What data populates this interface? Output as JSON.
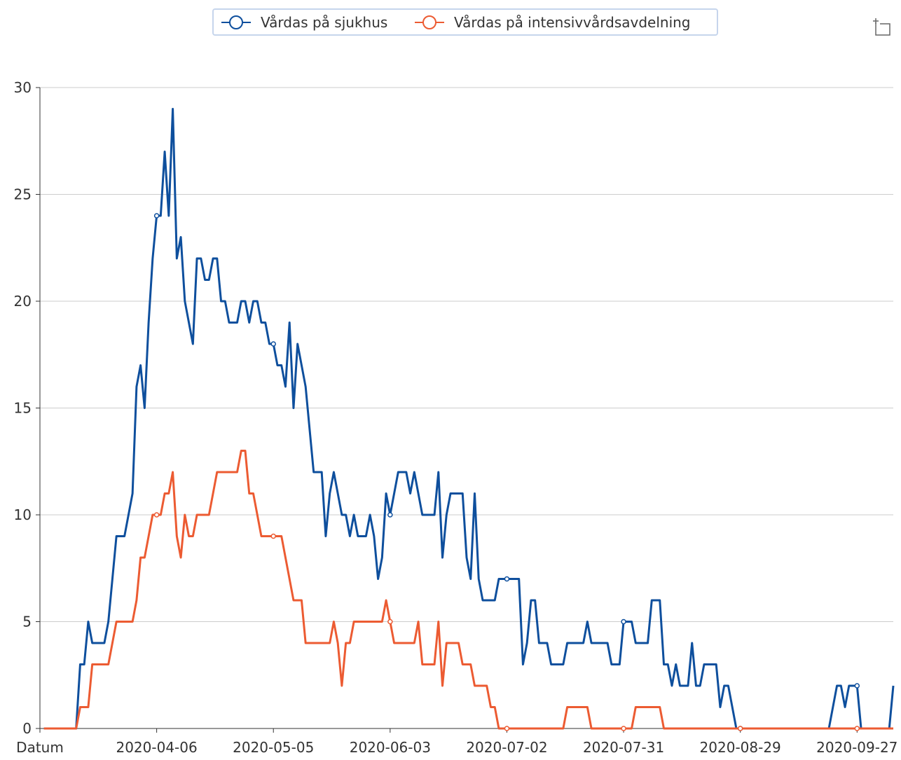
{
  "chart_data": {
    "type": "line",
    "categories": [
      "Datum",
      "2020-03-09",
      "2020-03-10",
      "2020-03-11",
      "2020-03-12",
      "2020-03-13",
      "2020-03-14",
      "2020-03-15",
      "2020-03-16",
      "2020-03-17",
      "2020-03-18",
      "2020-03-19",
      "2020-03-20",
      "2020-03-21",
      "2020-03-22",
      "2020-03-23",
      "2020-03-24",
      "2020-03-25",
      "2020-03-26",
      "2020-03-27",
      "2020-03-28",
      "2020-03-29",
      "2020-03-30",
      "2020-03-31",
      "2020-04-01",
      "2020-04-02",
      "2020-04-03",
      "2020-04-04",
      "2020-04-05",
      "2020-04-06",
      "2020-04-07",
      "2020-04-08",
      "2020-04-09",
      "2020-04-10",
      "2020-04-11",
      "2020-04-12",
      "2020-04-13",
      "2020-04-14",
      "2020-04-15",
      "2020-04-16",
      "2020-04-17",
      "2020-04-18",
      "2020-04-19",
      "2020-04-20",
      "2020-04-21",
      "2020-04-22",
      "2020-04-23",
      "2020-04-24",
      "2020-04-25",
      "2020-04-26",
      "2020-04-27",
      "2020-04-28",
      "2020-04-29",
      "2020-04-30",
      "2020-05-01",
      "2020-05-02",
      "2020-05-03",
      "2020-05-04",
      "2020-05-05",
      "2020-05-06",
      "2020-05-07",
      "2020-05-08",
      "2020-05-09",
      "2020-05-10",
      "2020-05-11",
      "2020-05-12",
      "2020-05-13",
      "2020-05-14",
      "2020-05-15",
      "2020-05-16",
      "2020-05-17",
      "2020-05-18",
      "2020-05-19",
      "2020-05-20",
      "2020-05-21",
      "2020-05-22",
      "2020-05-23",
      "2020-05-24",
      "2020-05-25",
      "2020-05-26",
      "2020-05-27",
      "2020-05-28",
      "2020-05-29",
      "2020-05-30",
      "2020-05-31",
      "2020-06-01",
      "2020-06-02",
      "2020-06-03",
      "2020-06-04",
      "2020-06-05",
      "2020-06-06",
      "2020-06-07",
      "2020-06-08",
      "2020-06-09",
      "2020-06-10",
      "2020-06-11",
      "2020-06-12",
      "2020-06-13",
      "2020-06-14",
      "2020-06-15",
      "2020-06-16",
      "2020-06-17",
      "2020-06-18",
      "2020-06-19",
      "2020-06-20",
      "2020-06-21",
      "2020-06-22",
      "2020-06-23",
      "2020-06-24",
      "2020-06-25",
      "2020-06-26",
      "2020-06-27",
      "2020-06-28",
      "2020-06-29",
      "2020-06-30",
      "2020-07-01",
      "2020-07-02",
      "2020-07-03",
      "2020-07-04",
      "2020-07-05",
      "2020-07-06",
      "2020-07-07",
      "2020-07-08",
      "2020-07-09",
      "2020-07-10",
      "2020-07-11",
      "2020-07-12",
      "2020-07-13",
      "2020-07-14",
      "2020-07-15",
      "2020-07-16",
      "2020-07-17",
      "2020-07-18",
      "2020-07-19",
      "2020-07-20",
      "2020-07-21",
      "2020-07-22",
      "2020-07-23",
      "2020-07-24",
      "2020-07-25",
      "2020-07-26",
      "2020-07-27",
      "2020-07-28",
      "2020-07-29",
      "2020-07-30",
      "2020-07-31",
      "2020-08-01",
      "2020-08-02",
      "2020-08-03",
      "2020-08-04",
      "2020-08-05",
      "2020-08-06",
      "2020-08-07",
      "2020-08-08",
      "2020-08-09",
      "2020-08-10",
      "2020-08-11",
      "2020-08-12",
      "2020-08-13",
      "2020-08-14",
      "2020-08-15",
      "2020-08-16",
      "2020-08-17",
      "2020-08-18",
      "2020-08-19",
      "2020-08-20",
      "2020-08-21",
      "2020-08-22",
      "2020-08-23",
      "2020-08-24",
      "2020-08-25",
      "2020-08-26",
      "2020-08-27",
      "2020-08-28",
      "2020-08-29",
      "2020-08-30",
      "2020-08-31",
      "2020-09-01",
      "2020-09-02",
      "2020-09-03",
      "2020-09-04",
      "2020-09-05",
      "2020-09-06",
      "2020-09-07",
      "2020-09-08",
      "2020-09-09",
      "2020-09-10",
      "2020-09-11",
      "2020-09-12",
      "2020-09-13",
      "2020-09-14",
      "2020-09-15",
      "2020-09-16",
      "2020-09-17",
      "2020-09-18",
      "2020-09-19",
      "2020-09-20",
      "2020-09-21",
      "2020-09-22",
      "2020-09-23",
      "2020-09-24",
      "2020-09-25",
      "2020-09-26",
      "2020-09-27",
      "2020-09-28",
      "2020-09-29",
      "2020-09-30",
      "2020-10-01",
      "2020-10-02",
      "2020-10-03",
      "2020-10-04",
      "2020-10-05",
      "2020-10-06"
    ],
    "series": [
      {
        "name": "Vårdas på sjukhus",
        "color": "#0e4f9d",
        "values": [
          null,
          0,
          0,
          0,
          0,
          0,
          0,
          0,
          0,
          0,
          3,
          3,
          5,
          4,
          4,
          4,
          4,
          5,
          7,
          9,
          9,
          9,
          10,
          11,
          16,
          17,
          15,
          19,
          22,
          24,
          24,
          27,
          24,
          29,
          22,
          23,
          20,
          19,
          18,
          22,
          22,
          21,
          21,
          22,
          22,
          20,
          20,
          19,
          19,
          19,
          20,
          20,
          19,
          20,
          20,
          19,
          19,
          18,
          18,
          17,
          17,
          16,
          19,
          15,
          18,
          17,
          16,
          14,
          12,
          12,
          12,
          9,
          11,
          12,
          11,
          10,
          10,
          9,
          10,
          9,
          9,
          9,
          10,
          9,
          7,
          8,
          11,
          10,
          11,
          12,
          12,
          12,
          11,
          12,
          11,
          10,
          10,
          10,
          10,
          12,
          8,
          10,
          11,
          11,
          11,
          11,
          8,
          7,
          11,
          7,
          6,
          6,
          6,
          6,
          7,
          7,
          7,
          7,
          7,
          7,
          3,
          4,
          6,
          6,
          4,
          4,
          4,
          3,
          3,
          3,
          3,
          4,
          4,
          4,
          4,
          4,
          5,
          4,
          4,
          4,
          4,
          4,
          3,
          3,
          3,
          5,
          5,
          5,
          4,
          4,
          4,
          4,
          6,
          6,
          6,
          3,
          3,
          2,
          3,
          2,
          2,
          2,
          4,
          2,
          2,
          3,
          3,
          3,
          3,
          1,
          2,
          2,
          1,
          0,
          0,
          0,
          0,
          0,
          0,
          0,
          0,
          0,
          0,
          0,
          0,
          0,
          0,
          0,
          0,
          0,
          0,
          0,
          0,
          0,
          0,
          0,
          0,
          1,
          2,
          2,
          1,
          2,
          2,
          2,
          0,
          0,
          0,
          0,
          0,
          0,
          0,
          0,
          2
        ]
      },
      {
        "name": "Vårdas på intensivvårdsavdelning",
        "color": "#ec5b32",
        "values": [
          null,
          0,
          0,
          0,
          0,
          0,
          0,
          0,
          0,
          0,
          1,
          1,
          1,
          3,
          3,
          3,
          3,
          3,
          4,
          5,
          5,
          5,
          5,
          5,
          6,
          8,
          8,
          9,
          10,
          10,
          10,
          11,
          11,
          12,
          9,
          8,
          10,
          9,
          9,
          10,
          10,
          10,
          10,
          11,
          12,
          12,
          12,
          12,
          12,
          12,
          13,
          13,
          11,
          11,
          10,
          9,
          9,
          9,
          9,
          9,
          9,
          8,
          7,
          6,
          6,
          6,
          4,
          4,
          4,
          4,
          4,
          4,
          4,
          5,
          4,
          2,
          4,
          4,
          5,
          5,
          5,
          5,
          5,
          5,
          5,
          5,
          6,
          5,
          4,
          4,
          4,
          4,
          4,
          4,
          5,
          3,
          3,
          3,
          3,
          5,
          2,
          4,
          4,
          4,
          4,
          3,
          3,
          3,
          2,
          2,
          2,
          2,
          1,
          1,
          0,
          0,
          0,
          0,
          0,
          0,
          0,
          0,
          0,
          0,
          0,
          0,
          0,
          0,
          0,
          0,
          0,
          1,
          1,
          1,
          1,
          1,
          1,
          0,
          0,
          0,
          0,
          0,
          0,
          0,
          0,
          0,
          0,
          0,
          1,
          1,
          1,
          1,
          1,
          1,
          1,
          0,
          0,
          0,
          0,
          0,
          0,
          0,
          0,
          0,
          0,
          0,
          0,
          0,
          0,
          0,
          0,
          0,
          0,
          0,
          0,
          0,
          0,
          0,
          0,
          0,
          0,
          0,
          0,
          0,
          0,
          0,
          0,
          0,
          0,
          0,
          0,
          0,
          0,
          0,
          0,
          0,
          0,
          0,
          0,
          0,
          0,
          0,
          0,
          0,
          0,
          0,
          0,
          0,
          0,
          0,
          0,
          0,
          0
        ]
      }
    ],
    "ylim": [
      0,
      30
    ],
    "yticks": [
      0,
      5,
      10,
      15,
      20,
      25,
      30
    ],
    "grid": true,
    "xlabel_interval": 29,
    "legend": "top"
  }
}
